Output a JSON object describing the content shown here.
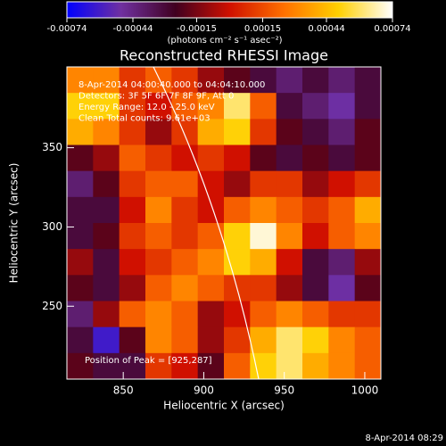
{
  "chart_data": {
    "type": "heatmap",
    "title": "Reconstructed RHESSI Image",
    "xlabel": "Heliocentric X (arcsec)",
    "ylabel": "Heliocentric Y (arcsec)",
    "xlim": [
      815,
      1010
    ],
    "ylim": [
      204,
      401
    ],
    "xticks": [
      850,
      900,
      950,
      1000
    ],
    "yticks": [
      250,
      300,
      350
    ],
    "clim": [
      -0.00074,
      0.00074
    ],
    "cticks": [
      -0.00074,
      -0.00044,
      -0.00015,
      0.00015,
      0.00044,
      0.00074
    ],
    "colorbar_label": "(photons cm⁻² s⁻¹ asec⁻²)",
    "colorscale": [
      "#0000ff",
      "#7030a0",
      "#400020",
      "#d01000",
      "#ff7000",
      "#ffd000",
      "#ffffff"
    ],
    "annotations": [
      "8-Apr-2014 04:00:40.000 to 04:04:10.000",
      "Detectors: 3F 5F 6F 7F 8F 9F, Att 0",
      "Energy Range: 12.0 - 25.0 keV",
      "Clean    Total counts: 9.61e+03"
    ],
    "peak_note": "Position of Peak = [925,287]",
    "timestamp": "8-Apr-2014 08:29",
    "values": [
      [
        0.0003,
        0.0003,
        0.0001,
        0.0002,
        0.0001,
        -0.0001,
        -0.0002,
        -0.0003,
        -0.0004,
        -0.0003,
        -0.0004,
        -0.0003
      ],
      [
        0.0005,
        0.0005,
        0.0001,
        0.0,
        0.0002,
        0.0003,
        0.0006,
        0.0002,
        -0.0003,
        -0.0004,
        -0.0005,
        -0.0003
      ],
      [
        0.0004,
        0.0003,
        0.0001,
        -0.0001,
        0.0001,
        0.0004,
        0.0005,
        0.0001,
        -0.0002,
        -0.0003,
        -0.0004,
        -0.0002
      ],
      [
        -0.0002,
        -0.0001,
        0.0002,
        0.0001,
        0.0,
        0.0001,
        0.0,
        -0.0002,
        -0.0003,
        -0.0002,
        -0.0003,
        -0.0002
      ],
      [
        -0.0004,
        -0.0002,
        0.0001,
        0.0002,
        0.0002,
        0.0,
        -0.0001,
        0.0001,
        0.0001,
        -0.0001,
        0.0,
        0.0001
      ],
      [
        -0.0003,
        -0.0003,
        0.0,
        0.0003,
        0.0001,
        0.0,
        0.0002,
        0.0003,
        0.0002,
        0.0001,
        0.0002,
        0.0004
      ],
      [
        -0.0003,
        -0.0002,
        0.0001,
        0.0002,
        0.0001,
        0.0002,
        0.0005,
        0.0007,
        0.0003,
        0.0,
        0.0002,
        0.0003
      ],
      [
        -0.0001,
        -0.0003,
        0.0,
        0.0001,
        0.0002,
        0.0003,
        0.0005,
        0.0004,
        0.0,
        -0.0003,
        -0.0004,
        -0.0001
      ],
      [
        -0.0002,
        -0.0003,
        -0.0001,
        0.0002,
        0.0003,
        0.0002,
        0.0001,
        0.0001,
        -0.0001,
        -0.0003,
        -0.0005,
        -0.0002
      ],
      [
        -0.0004,
        -0.0001,
        0.0002,
        0.0003,
        0.0002,
        -0.0001,
        0.0,
        0.0002,
        0.0003,
        0.0002,
        0.0001,
        0.0001
      ],
      [
        -0.0003,
        -0.0006,
        -0.0002,
        0.0003,
        0.0002,
        -0.0001,
        0.0001,
        0.0004,
        0.0006,
        0.0005,
        0.0003,
        0.0002
      ],
      [
        -0.0002,
        -0.0003,
        -0.0003,
        0.0001,
        0.0,
        -0.0002,
        0.0002,
        0.0005,
        0.0006,
        0.0004,
        0.0003,
        0.0002
      ]
    ]
  }
}
